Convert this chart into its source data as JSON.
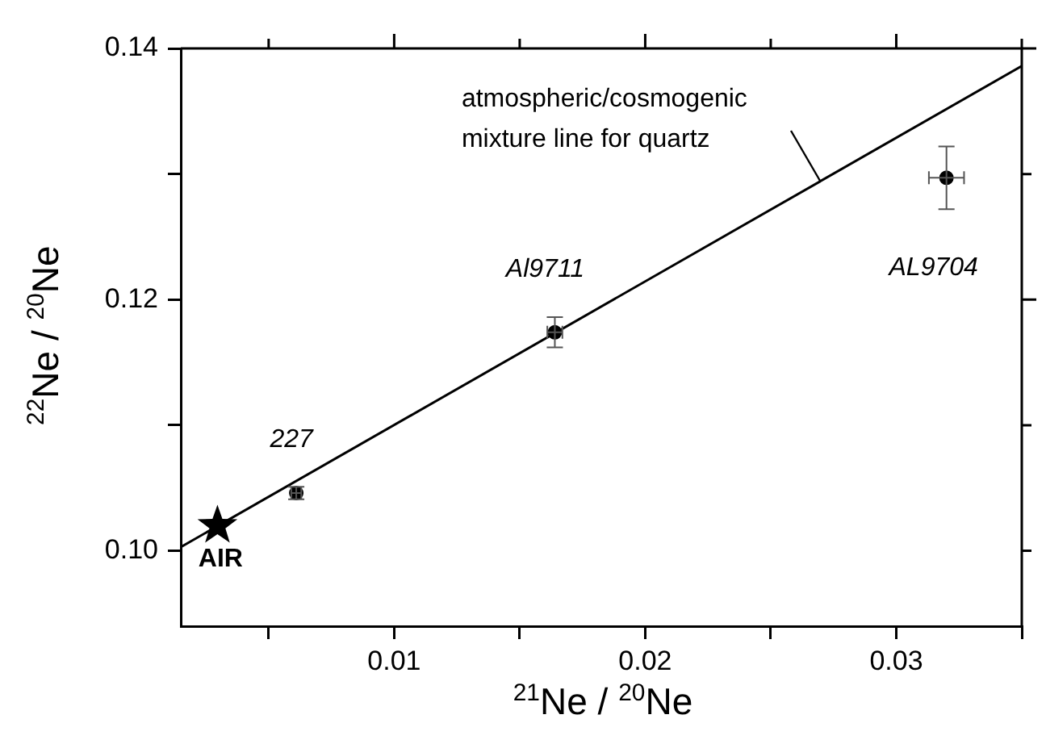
{
  "chart_data": {
    "type": "scatter",
    "xlabel": "$^{21}$Ne / $^{20}$Ne",
    "ylabel": "$^{22}$Ne / $^{20}$Ne",
    "xlim": [
      0.0015,
      0.035
    ],
    "ylim": [
      0.094,
      0.14
    ],
    "xticks": [
      {
        "value": 0.005,
        "label": null
      },
      0.01,
      {
        "value": 0.015,
        "label": null
      },
      0.02,
      {
        "value": 0.025,
        "label": null
      },
      0.03,
      {
        "value": 0.035,
        "label": null
      }
    ],
    "yticks": [
      {
        "value": 0.1,
        "label": "0.10"
      },
      {
        "value": 0.11,
        "label": null
      },
      0.12,
      {
        "value": 0.13,
        "label": null
      },
      0.14
    ],
    "series": [
      {
        "type": "line",
        "x": [
          0.0015,
          0.035
        ],
        "values": [
          0.1003,
          0.1386
        ],
        "color": "#000000",
        "marker": "none",
        "line_style": "solid"
      },
      {
        "type": "scatter",
        "x": [
          0.00296
        ],
        "values": [
          0.102
        ],
        "color": "#000000",
        "marker": "star"
      },
      {
        "type": "scatter",
        "x": [
          0.0061,
          0.0164,
          0.032
        ],
        "values": [
          0.1046,
          0.1174,
          0.1297
        ],
        "errors": [
          0.0005,
          0.0012,
          0.0025
        ],
        "xerrors": [
          0.0002,
          0.0003,
          0.0007
        ],
        "color": "#000000",
        "marker": "circle"
      }
    ],
    "annotations": [
      "atmospheric/cosmogenic\nmixture line for quartz",
      {
        "text": "227",
        "x": 0.0061,
        "y": 0.1046
      },
      {
        "text": "Al9711",
        "x": 0.0164,
        "y": 0.1174
      },
      {
        "text": "AL9704",
        "x": 0.032,
        "y": 0.1297
      },
      {
        "text": "AIR",
        "x": 0.00296,
        "y": 0.102
      }
    ]
  }
}
